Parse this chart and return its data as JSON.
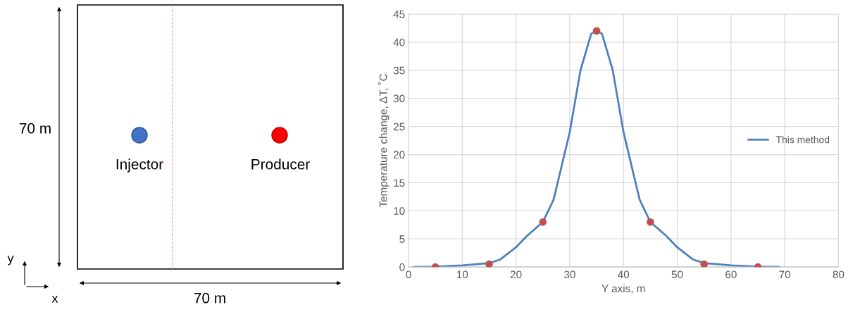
{
  "chart_data": [
    {
      "type": "other",
      "annotations": [
        "70 m",
        "70 m",
        "Injector",
        "Producer",
        "y",
        "x"
      ]
    },
    {
      "type": "line",
      "xlabel": "Y axis, m",
      "ylabel": "Temperature change, ΔT, ˚C",
      "xlim": [
        0,
        80
      ],
      "xticks": [
        0,
        10,
        20,
        30,
        40,
        50,
        60,
        70,
        80
      ],
      "ylim": [
        0,
        45
      ],
      "yticks": [
        0,
        5,
        10,
        15,
        20,
        25,
        30,
        35,
        40,
        45
      ],
      "grid": true,
      "legend": "right",
      "series": [
        {
          "name": "This method",
          "type": "line",
          "color": "#4f81bd",
          "marker": "none",
          "x": [
            1,
            5,
            10,
            15,
            17,
            20,
            22,
            25,
            27,
            30,
            32,
            34,
            35,
            36,
            38,
            40,
            43,
            45,
            48,
            50,
            53,
            55,
            60,
            65,
            69
          ],
          "values": [
            0,
            0.05,
            0.3,
            0.7,
            1.3,
            3.5,
            5.5,
            8,
            12,
            24,
            35,
            41.5,
            42,
            41.5,
            35,
            24,
            12,
            8,
            5.5,
            3.5,
            1.3,
            0.7,
            0.3,
            0.05,
            0
          ]
        },
        {
          "type": "scatter",
          "color": "#c0504d",
          "marker": "circle",
          "x": [
            5,
            15,
            25,
            35,
            45,
            55,
            65
          ],
          "values": [
            0,
            0.5,
            8,
            42,
            8,
            0.5,
            0
          ]
        }
      ]
    }
  ]
}
